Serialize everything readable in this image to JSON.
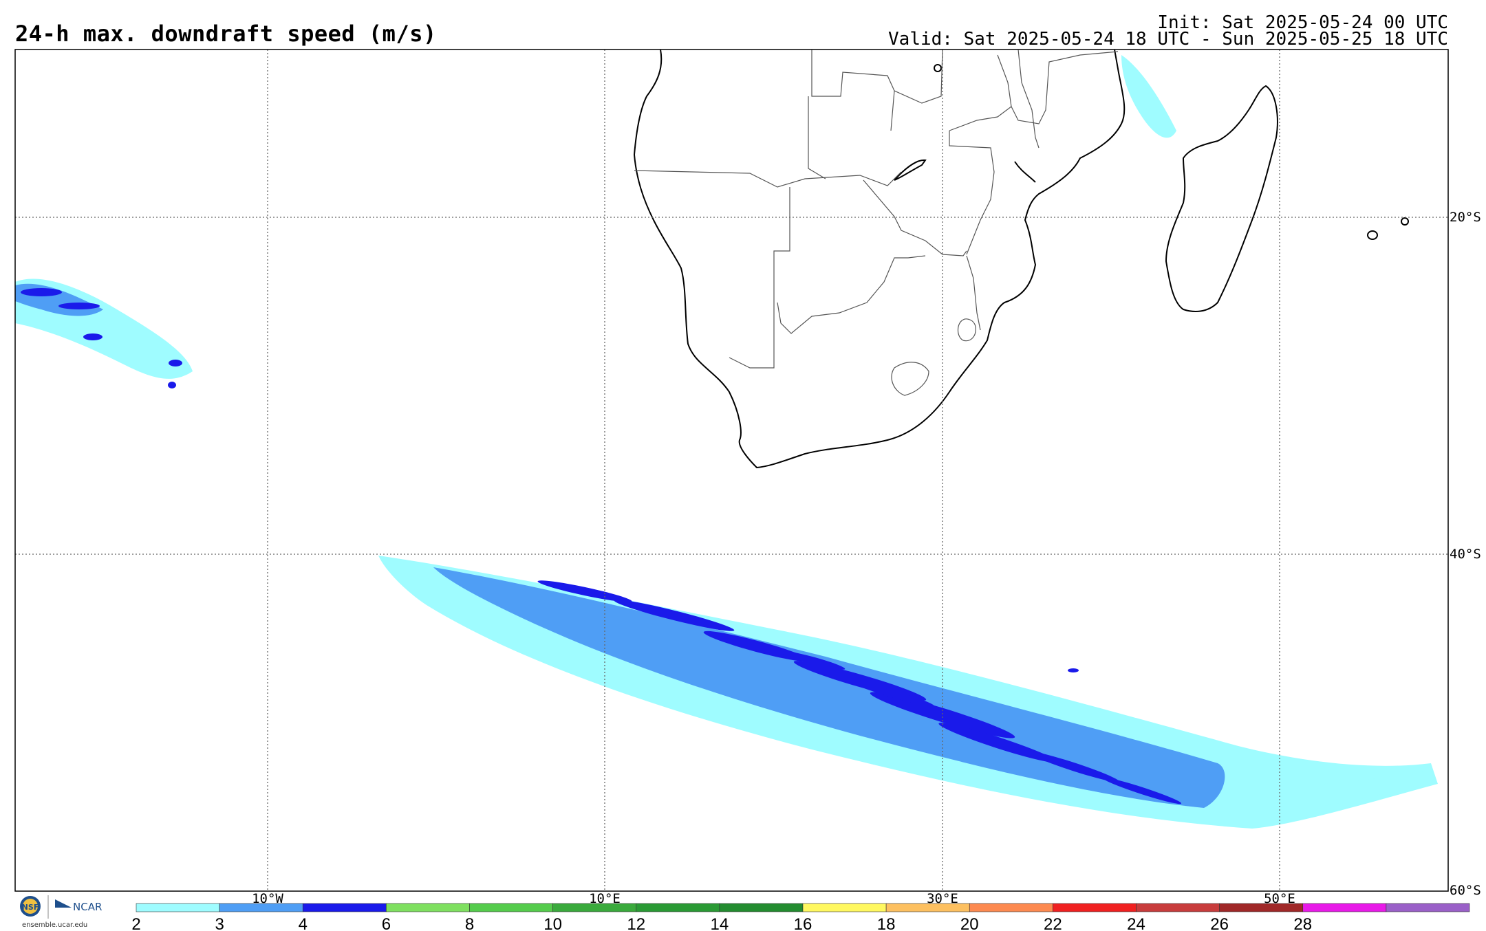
{
  "header": {
    "title": "24-h max. downdraft speed (m/s)",
    "init": "Init: Sat 2025-05-24 00 UTC",
    "valid": "Valid: Sat 2025-05-24 18 UTC - Sun 2025-05-25 18 UTC"
  },
  "map": {
    "lon_labels": [
      "10°W",
      "10°E",
      "30°E",
      "50°E"
    ],
    "lat_labels": [
      "20°S",
      "40°S",
      "60°S"
    ]
  },
  "colorbar": {
    "ticks": [
      "2",
      "3",
      "4",
      "6",
      "8",
      "10",
      "12",
      "14",
      "16",
      "18",
      "20",
      "22",
      "24",
      "26",
      "28"
    ],
    "colors": [
      "#9ffcff",
      "#4f9ef5",
      "#1a1aea",
      "#7fe060",
      "#55cc4c",
      "#3aaa3c",
      "#2a9a34",
      "#238c30",
      "#fff860",
      "#fdc060",
      "#fd8a50",
      "#f02020",
      "#c83c3c",
      "#a02828",
      "#e81ae8",
      "#9a60c8"
    ]
  },
  "logos": {
    "nsf": "NSF",
    "ncar": "NCAR",
    "url": "ensemble.ucar.edu"
  },
  "palette": {
    "light": "#9ffcff",
    "medium": "#4f9ef5",
    "dark": "#1a1aea"
  }
}
